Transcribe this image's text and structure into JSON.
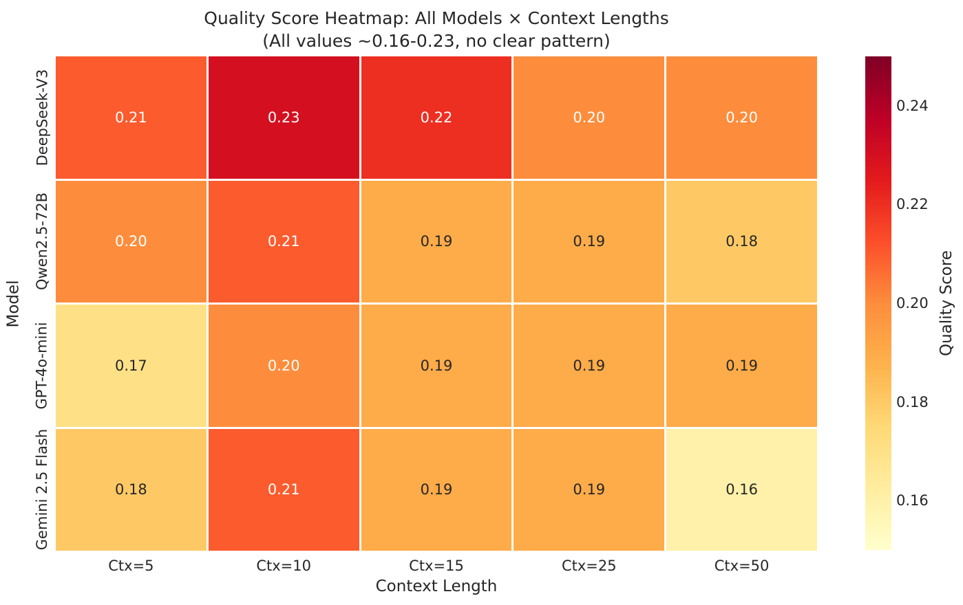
{
  "figure": {
    "background": "#ffffff",
    "text_color": "#262626"
  },
  "chart_data": {
    "type": "heatmap",
    "title": "Quality Score Heatmap: All Models × Context Lengths",
    "subtitle": "(All values ~0.16-0.23, no clear pattern)",
    "xlabel": "Context Length",
    "ylabel": "Model",
    "columns": [
      "Ctx=5",
      "Ctx=10",
      "Ctx=15",
      "Ctx=25",
      "Ctx=50"
    ],
    "rows": [
      "DeepSeek-V3",
      "Qwen2.5-72B",
      "GPT-4o-mini",
      "Gemini 2.5 Flash"
    ],
    "values": [
      [
        0.21,
        0.23,
        0.22,
        0.2,
        0.2
      ],
      [
        0.2,
        0.21,
        0.19,
        0.19,
        0.18
      ],
      [
        0.17,
        0.2,
        0.19,
        0.19,
        0.19
      ],
      [
        0.18,
        0.21,
        0.19,
        0.19,
        0.16
      ]
    ],
    "cell_linecolor": "#ffffff",
    "annotation_text_colors": {
      "light": "#ffffff",
      "dark": "#262626"
    },
    "grid": false,
    "legend_position": "colorbar-right",
    "colorbar": {
      "label": "Quality Score",
      "ticks": [
        0.24,
        0.22,
        0.2,
        0.18,
        0.16
      ],
      "vmin": 0.15,
      "vmax": 0.25,
      "colormap": "YlOrRd",
      "colormap_stops": [
        {
          "t": 0.0,
          "hex": "#ffffcc"
        },
        {
          "t": 0.125,
          "hex": "#ffeda0"
        },
        {
          "t": 0.25,
          "hex": "#fed976"
        },
        {
          "t": 0.375,
          "hex": "#feb24c"
        },
        {
          "t": 0.5,
          "hex": "#fd8d3c"
        },
        {
          "t": 0.625,
          "hex": "#fc4e2a"
        },
        {
          "t": 0.75,
          "hex": "#e31a1c"
        },
        {
          "t": 0.875,
          "hex": "#bd0026"
        },
        {
          "t": 1.0,
          "hex": "#800026"
        }
      ]
    }
  }
}
